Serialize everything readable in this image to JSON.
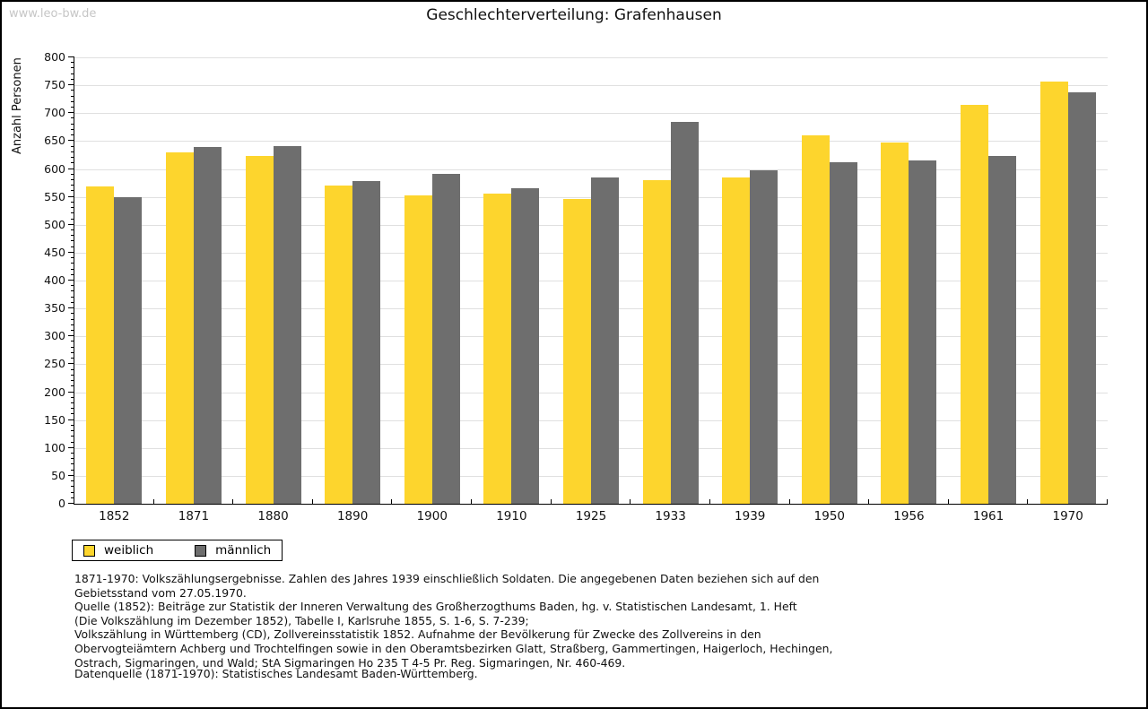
{
  "watermark": "www.leo-bw.de",
  "title": "Geschlechterverteilung: Grafenhausen",
  "chart_data": {
    "type": "bar",
    "title": "Geschlechterverteilung: Grafenhausen",
    "ylabel": "Anzahl Personen",
    "xlabel": "",
    "categories": [
      "1852",
      "1871",
      "1880",
      "1890",
      "1900",
      "1910",
      "1925",
      "1933",
      "1939",
      "1950",
      "1956",
      "1961",
      "1970"
    ],
    "series": [
      {
        "name": "weiblich",
        "color": "#FDD52D",
        "values": [
          568,
          630,
          623,
          570,
          552,
          556,
          547,
          580,
          585,
          660,
          648,
          715,
          757
        ]
      },
      {
        "name": "männlich",
        "color": "#6E6E6E",
        "values": [
          549,
          640,
          641,
          579,
          591,
          566,
          585,
          685,
          598,
          612,
          615,
          623,
          737
        ]
      }
    ],
    "ylim": [
      0,
      800
    ],
    "ytick_step": 50,
    "ytick_minor_step": 10,
    "grid": "horizontal",
    "grid_color": "#E0E0E0",
    "axis_color": "#000000",
    "legend_position": "bottom-left"
  },
  "notes_lines": [
    "1871-1970: Volkszählungsergebnisse. Zahlen des Jahres 1939 einschließlich Soldaten. Die angegebenen Daten beziehen sich auf den",
    "Gebietsstand vom 27.05.1970.",
    "Quelle (1852): Beiträge zur Statistik der Inneren Verwaltung des Großherzogthums Baden, hg. v. Statistischen Landesamt, 1. Heft",
    "(Die Volkszählung im Dezember 1852), Tabelle I, Karlsruhe 1855, S. 1-6, S. 7-239;",
    "Volkszählung in Württemberg (CD), Zollvereinsstatistik 1852. Aufnahme der Bevölkerung für Zwecke des Zollvereins in den",
    "Obervogteiämtern Achberg und Trochtelfingen sowie in den Oberamtsbezirken Glatt, Straßberg, Gammertingen, Haigerloch, Hechingen,",
    "Ostrach, Sigmaringen, und Wald; StA Sigmaringen Ho 235 T 4-5 Pr. Reg. Sigmaringen, Nr. 460-469."
  ],
  "datasource": "Datenquelle (1871-1970): Statistisches Landesamt Baden-Württemberg."
}
